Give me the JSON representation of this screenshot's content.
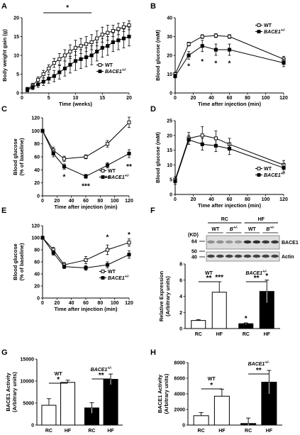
{
  "chart_data": [
    {
      "panel": "A",
      "type": "line",
      "x": [
        1,
        2,
        3,
        4,
        5,
        6,
        7,
        8,
        9,
        10,
        11,
        12,
        13,
        14,
        15,
        16,
        17,
        18,
        19,
        20
      ],
      "series": [
        {
          "name": "WT",
          "values": [
            1,
            2,
            3.5,
            5,
            6.5,
            8,
            9,
            10,
            11,
            12,
            12.5,
            13,
            13.5,
            14.5,
            15.5,
            16,
            16.5,
            17,
            17.5,
            18
          ],
          "err": [
            0.5,
            0.6,
            0.8,
            1,
            1,
            1.2,
            1.5,
            1.5,
            1.8,
            2,
            2,
            2,
            2,
            2,
            2,
            2,
            1.5,
            1.5,
            1.2,
            1.2
          ],
          "marker": "open-square"
        },
        {
          "name": "BACE1+/-",
          "values": [
            0.8,
            1.5,
            2.3,
            3,
            3.8,
            4.5,
            5.5,
            6.5,
            7.5,
            8.5,
            9,
            9.5,
            10,
            11,
            12,
            12.5,
            13.5,
            14,
            14.5,
            15
          ],
          "err": [
            0.5,
            0.6,
            0.8,
            1,
            1.2,
            1.5,
            1.8,
            2,
            2.2,
            2.5,
            2.5,
            2.5,
            2.5,
            2.5,
            2.5,
            2.5,
            2.5,
            2.5,
            2.5,
            2.5
          ],
          "marker": "filled-square"
        }
      ],
      "xlabel": "Time (weeks)",
      "ylabel": "Body weight gain (g)",
      "xlim": [
        0,
        20
      ],
      "ylim": [
        0,
        20
      ],
      "xticks": [
        0,
        5,
        10,
        15,
        20
      ],
      "yticks": [
        0,
        5,
        10,
        15,
        20
      ],
      "annotations": [
        {
          "text": "*",
          "bar_from": 4,
          "bar_to": 13,
          "y": 19.5
        }
      ]
    },
    {
      "panel": "B",
      "type": "line",
      "x": [
        0,
        15,
        30,
        45,
        60,
        120
      ],
      "series": [
        {
          "name": "WT",
          "values": [
            10,
            26,
            30,
            30.5,
            30,
            18
          ],
          "err": [
            1,
            1,
            1,
            1,
            1,
            1.5
          ],
          "marker": "open-square"
        },
        {
          "name": "BACE1+/-",
          "values": [
            9,
            20,
            25,
            23,
            23,
            16
          ],
          "err": [
            1,
            2,
            3,
            3,
            3,
            2
          ],
          "marker": "filled-square"
        }
      ],
      "xlabel": "Time after injection (min)",
      "ylabel": "Blood glucose (mM)",
      "xlim": [
        0,
        120
      ],
      "ylim": [
        0,
        40
      ],
      "xticks": [
        0,
        20,
        40,
        60,
        80,
        100,
        120
      ],
      "yticks": [
        0,
        10,
        20,
        30,
        40
      ],
      "annotations": [
        {
          "text": "*",
          "x": 15,
          "y": 14.5
        },
        {
          "text": "*",
          "x": 30,
          "y": 17
        },
        {
          "text": "*",
          "x": 45,
          "y": 16
        },
        {
          "text": "*",
          "x": 60,
          "y": 16
        }
      ]
    },
    {
      "panel": "C",
      "type": "line",
      "x": [
        0,
        15,
        30,
        60,
        90,
        120
      ],
      "series": [
        {
          "name": "WT",
          "values": [
            100,
            70,
            57,
            60,
            80,
            113
          ],
          "err": [
            2,
            5,
            4,
            3,
            5,
            8
          ],
          "marker": "open-square"
        },
        {
          "name": "BACE1+/-",
          "values": [
            100,
            65,
            45,
            30,
            47,
            65
          ],
          "err": [
            2,
            5,
            4,
            3,
            4,
            6
          ],
          "marker": "filled-square"
        }
      ],
      "xlabel": "Time after injection (min)",
      "ylabel": "Blood glucose (% of baseline)",
      "xlim": [
        0,
        120
      ],
      "ylim": [
        0,
        120
      ],
      "xticks": [
        0,
        20,
        40,
        60,
        80,
        100,
        120
      ],
      "yticks": [
        0,
        20,
        40,
        60,
        80,
        100,
        120
      ],
      "annotations": [
        {
          "text": "*",
          "x": 30,
          "y": 30
        },
        {
          "text": "***",
          "x": 60,
          "y": 16
        },
        {
          "text": "**",
          "x": 90,
          "y": 28
        },
        {
          "text": "**",
          "x": 120,
          "y": 46
        }
      ]
    },
    {
      "panel": "D",
      "type": "line",
      "x": [
        0,
        15,
        30,
        45,
        60,
        120
      ],
      "series": [
        {
          "name": "WT",
          "values": [
            5,
            19,
            20,
            19,
            17,
            10
          ],
          "err": [
            1,
            2,
            3,
            2.5,
            2,
            1.5
          ],
          "marker": "open-square"
        },
        {
          "name": "BACE1+/-",
          "values": [
            4.5,
            18.5,
            17,
            16.5,
            15.5,
            9
          ],
          "err": [
            1,
            1.5,
            2,
            2,
            2,
            1.5
          ],
          "marker": "filled-square"
        }
      ],
      "xlabel": "Time after injection (min)",
      "ylabel": "Blood glucose (mM)",
      "xlim": [
        0,
        120
      ],
      "ylim": [
        0,
        25
      ],
      "xticks": [
        0,
        20,
        40,
        60,
        80,
        100,
        120
      ],
      "yticks": [
        0,
        5,
        10,
        15,
        20,
        25
      ]
    },
    {
      "panel": "E",
      "type": "line",
      "x": [
        0,
        15,
        30,
        60,
        90,
        120
      ],
      "series": [
        {
          "name": "WT",
          "values": [
            100,
            80,
            55,
            63,
            80,
            92
          ],
          "err": [
            2,
            4,
            4,
            6,
            8,
            6
          ],
          "marker": "open-square"
        },
        {
          "name": "BACE1+/-",
          "values": [
            100,
            75,
            52,
            50,
            55,
            72
          ],
          "err": [
            2,
            4,
            3,
            4,
            5,
            6
          ],
          "marker": "filled-square"
        }
      ],
      "xlabel": "Time after injection (min)",
      "ylabel": "Blood glucose (% of baseline)",
      "xlim": [
        0,
        120
      ],
      "ylim": [
        0,
        120
      ],
      "xticks": [
        0,
        20,
        40,
        60,
        80,
        100,
        120
      ],
      "yticks": [
        0,
        20,
        40,
        60,
        80,
        100,
        120
      ],
      "annotations": [
        {
          "text": "*",
          "x": 90,
          "y": 102
        },
        {
          "text": "*",
          "x": 120,
          "y": 106
        }
      ]
    },
    {
      "panel": "F",
      "type": "bar",
      "blot": {
        "groups": [
          "RC",
          "HF"
        ],
        "lanes": [
          "WT",
          "B+/-",
          "WT",
          "B+/-"
        ],
        "kd_label": "(KD)",
        "markers": [
          "64",
          "50",
          "40"
        ],
        "bands": [
          "BACE1",
          "Actin"
        ]
      },
      "categories": [
        "RC",
        "HF",
        "RC",
        "HF"
      ],
      "values": [
        1,
        4.5,
        0.6,
        4.6
      ],
      "err": [
        0.1,
        1.3,
        0.1,
        1.4
      ],
      "fills": [
        "white",
        "white",
        "black",
        "black"
      ],
      "ylabel": "Relative Expression (Arbitrary units)",
      "ylim": [
        0,
        8
      ],
      "yticks": [
        0,
        2,
        4,
        6,
        8
      ],
      "group_labels": [
        "WT",
        "BACE1+/-"
      ],
      "annotations": [
        "**",
        "***",
        "*",
        "**",
        "*"
      ]
    },
    {
      "panel": "G",
      "type": "bar",
      "categories": [
        "RC",
        "HF",
        "RC",
        "HF"
      ],
      "values": [
        4500,
        9700,
        3900,
        10400
      ],
      "err": [
        1500,
        500,
        1200,
        1200
      ],
      "fills": [
        "white",
        "white",
        "black",
        "black"
      ],
      "ylabel": "BACE1 Activity (Arbitrary units)",
      "ylim": [
        0,
        15000
      ],
      "yticks": [
        0,
        5000,
        10000,
        15000
      ],
      "group_labels": [
        "WT",
        "BACE1+/-"
      ],
      "annotations": [
        "*",
        "**"
      ]
    },
    {
      "panel": "H",
      "type": "bar",
      "categories": [
        "RC",
        "HF",
        "RC",
        "HF"
      ],
      "values": [
        1200,
        3700,
        200,
        5500
      ],
      "err": [
        400,
        900,
        700,
        1500
      ],
      "fills": [
        "white",
        "white",
        "black",
        "black"
      ],
      "ylabel": "BACE1 Activity (Arbitrary units)",
      "ylim": [
        0,
        8000
      ],
      "yticks": [
        0,
        2000,
        4000,
        6000,
        8000
      ],
      "group_labels": [
        "WT",
        "BACE1+/-"
      ],
      "annotations": [
        "*",
        "**"
      ]
    }
  ]
}
